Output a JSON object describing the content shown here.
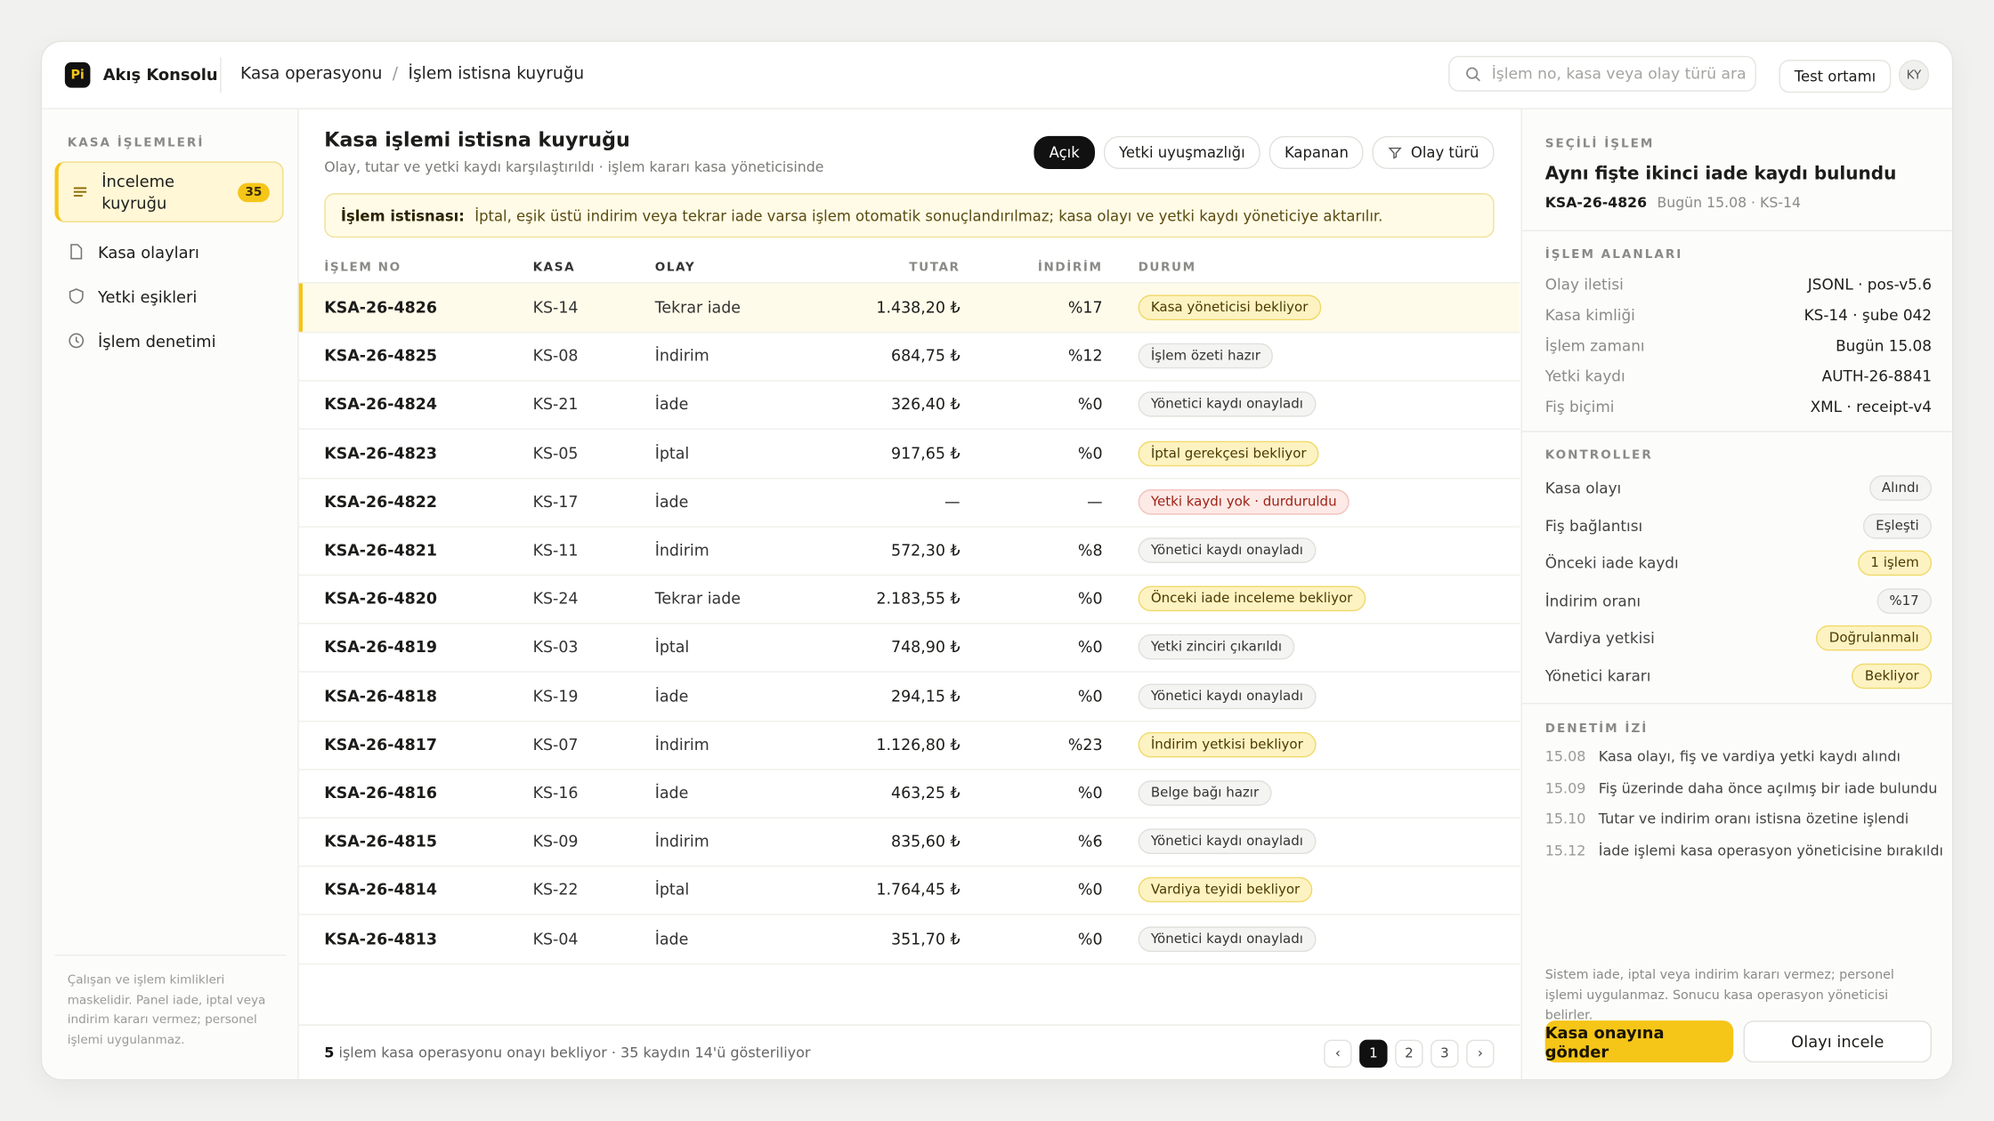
{
  "topbar": {
    "brand_mark": "Pi",
    "brand": "Akış Konsolu",
    "breadcrumb": [
      "Kasa operasyonu",
      "İşlem istisna kuyruğu"
    ],
    "breadcrumb_separator": "/",
    "search_placeholder": "İşlem no, kasa veya olay türü ara",
    "environment": "Test ortamı",
    "avatar": "KY"
  },
  "sidebar": {
    "section": "KASA İŞLEMLERİ",
    "items": [
      {
        "label": "İnceleme kuyruğu",
        "badge": "35",
        "active": true,
        "icon": "list"
      },
      {
        "label": "Kasa olayları",
        "icon": "doc"
      },
      {
        "label": "Yetki eşikleri",
        "icon": "shield"
      },
      {
        "label": "İşlem denetimi",
        "icon": "clock"
      }
    ],
    "note": "Çalışan ve işlem kimlikleri maskelidir. Panel iade, iptal veya indirim kararı vermez; personel işlemi uygulanmaz."
  },
  "main": {
    "title": "Kasa işlemi istisna kuyruğu",
    "subtitle": "Olay, tutar ve yetki kaydı karşılaştırıldı · işlem kararı kasa yöneticisinde",
    "filters": [
      {
        "label": "Açık",
        "active": true
      },
      {
        "label": "Yetki uyuşmazlığı"
      },
      {
        "label": "Kapanan"
      },
      {
        "label": "Olay türü",
        "icon": "filter"
      }
    ],
    "notice": {
      "label": "İşlem istisnası:",
      "text": "İptal, eşik üstü indirim veya tekrar iade varsa işlem otomatik sonuçlandırılmaz; kasa olayı ve yetki kaydı yöneticiye aktarılır."
    },
    "columns": [
      "İŞLEM NO",
      "KASA",
      "OLAY",
      "TUTAR",
      "İNDİRİM",
      "DURUM"
    ],
    "rows": [
      {
        "cells": [
          "KSA-26-4826",
          "KS-14",
          "Tekrar iade",
          "1.438,20 ₺",
          "%17"
        ],
        "status": "Kasa yöneticisi bekliyor",
        "tone": "warn",
        "selected": true
      },
      {
        "cells": [
          "KSA-26-4825",
          "KS-08",
          "İndirim",
          "684,75 ₺",
          "%12"
        ],
        "status": "İşlem özeti hazır",
        "tone": "neutral"
      },
      {
        "cells": [
          "KSA-26-4824",
          "KS-21",
          "İade",
          "326,40 ₺",
          "%0"
        ],
        "status": "Yönetici kaydı onayladı",
        "tone": "neutral"
      },
      {
        "cells": [
          "KSA-26-4823",
          "KS-05",
          "İptal",
          "917,65 ₺",
          "%0"
        ],
        "status": "İptal gerekçesi bekliyor",
        "tone": "warn"
      },
      {
        "cells": [
          "KSA-26-4822",
          "KS-17",
          "İade",
          "—",
          "—"
        ],
        "status": "Yetki kaydı yok · durduruldu",
        "tone": "danger"
      },
      {
        "cells": [
          "KSA-26-4821",
          "KS-11",
          "İndirim",
          "572,30 ₺",
          "%8"
        ],
        "status": "Yönetici kaydı onayladı",
        "tone": "neutral"
      },
      {
        "cells": [
          "KSA-26-4820",
          "KS-24",
          "Tekrar iade",
          "2.183,55 ₺",
          "%0"
        ],
        "status": "Önceki iade inceleme bekliyor",
        "tone": "warn"
      },
      {
        "cells": [
          "KSA-26-4819",
          "KS-03",
          "İptal",
          "748,90 ₺",
          "%0"
        ],
        "status": "Yetki zinciri çıkarıldı",
        "tone": "neutral"
      },
      {
        "cells": [
          "KSA-26-4818",
          "KS-19",
          "İade",
          "294,15 ₺",
          "%0"
        ],
        "status": "Yönetici kaydı onayladı",
        "tone": "neutral"
      },
      {
        "cells": [
          "KSA-26-4817",
          "KS-07",
          "İndirim",
          "1.126,80 ₺",
          "%23"
        ],
        "status": "İndirim yetkisi bekliyor",
        "tone": "warn"
      },
      {
        "cells": [
          "KSA-26-4816",
          "KS-16",
          "İade",
          "463,25 ₺",
          "%0"
        ],
        "status": "Belge bağı hazır",
        "tone": "neutral"
      },
      {
        "cells": [
          "KSA-26-4815",
          "KS-09",
          "İndirim",
          "835,60 ₺",
          "%6"
        ],
        "status": "Yönetici kaydı onayladı",
        "tone": "neutral"
      },
      {
        "cells": [
          "KSA-26-4814",
          "KS-22",
          "İptal",
          "1.764,45 ₺",
          "%0"
        ],
        "status": "Vardiya teyidi bekliyor",
        "tone": "warn"
      },
      {
        "cells": [
          "KSA-26-4813",
          "KS-04",
          "İade",
          "351,70 ₺",
          "%0"
        ],
        "status": "Yönetici kaydı onayladı",
        "tone": "neutral"
      }
    ],
    "footer": {
      "count": "5",
      "text": "işlem kasa operasyonu onayı bekliyor · 35 kaydın 14'ü gösteriliyor"
    },
    "pagination": {
      "prev": "‹",
      "pages": [
        "1",
        "2",
        "3"
      ],
      "current": 0,
      "next": "›"
    }
  },
  "detail": {
    "section": "SEÇİLİ İŞLEM",
    "title": "Aynı fişte ikinci iade kaydı bulundu",
    "id": "KSA-26-4826",
    "meta": "Bugün 15.08 · KS-14",
    "fields_title": "İŞLEM ALANLARI",
    "fields": [
      {
        "label": "Olay iletisi",
        "value": "JSONL · pos-v5.6"
      },
      {
        "label": "Kasa kimliği",
        "value": "KS-14 · şube 042"
      },
      {
        "label": "İşlem zamanı",
        "value": "Bugün 15.08"
      },
      {
        "label": "Yetki kaydı",
        "value": "AUTH-26-8841"
      },
      {
        "label": "Fiş biçimi",
        "value": "XML · receipt-v4"
      }
    ],
    "controls_title": "KONTROLLER",
    "controls": [
      {
        "label": "Kasa olayı",
        "value": "Alındı",
        "tone": "neutral"
      },
      {
        "label": "Fiş bağlantısı",
        "value": "Eşleşti",
        "tone": "neutral"
      },
      {
        "label": "Önceki iade kaydı",
        "value": "1 işlem",
        "tone": "warn"
      },
      {
        "label": "İndirim oranı",
        "value": "%17",
        "tone": "neutral"
      },
      {
        "label": "Vardiya yetkisi",
        "value": "Doğrulanmalı",
        "tone": "warn"
      },
      {
        "label": "Yönetici kararı",
        "value": "Bekliyor",
        "tone": "warn"
      }
    ],
    "audit_title": "DENETİM İZİ",
    "audit": [
      {
        "time": "15.08",
        "text": "Kasa olayı, fiş ve vardiya yetki kaydı alındı"
      },
      {
        "time": "15.09",
        "text": "Fiş üzerinde daha önce açılmış bir iade bulundu"
      },
      {
        "time": "15.10",
        "text": "Tutar ve indirim oranı istisna özetine işlendi"
      },
      {
        "time": "15.12",
        "text": "İade işlemi kasa operasyon yöneticisine bırakıldı"
      }
    ],
    "note": "Sistem iade, iptal veya indirim kararı vermez; personel işlemi uygulanmaz. Sonucu kasa operasyon yöneticisi belirler.",
    "primary_action": "Kasa onayına gönder",
    "secondary_action": "Olayı incele"
  }
}
